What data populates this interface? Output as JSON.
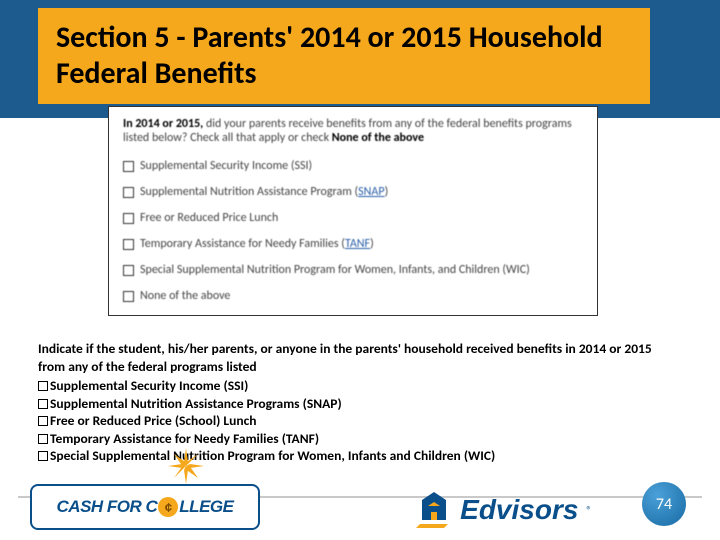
{
  "colors": {
    "header_band": "#1d5b8f",
    "title_bg": "#f5a81c",
    "title_text": "#000000",
    "link": "#2a5ea8",
    "rule": "#c9c9c9",
    "brand_navy": "#0b4f8a",
    "page_bubble_gradient_from": "#4aa0d8",
    "page_bubble_gradient_to": "#186aa3"
  },
  "title": "Section 5 - Parents' 2014 or 2015 Household Federal Benefits",
  "form": {
    "prompt_prefix_bold": "In 2014 or 2015,",
    "prompt_rest": " did your parents receive benefits from any of the federal benefits programs listed below? Check all that apply or check ",
    "prompt_suffix_bold": "None of the above",
    "items": [
      {
        "label": "Supplemental Security Income (SSI)",
        "link": null
      },
      {
        "label": "Supplemental Nutrition Assistance Program (",
        "link": "SNAP",
        "after": ")"
      },
      {
        "label": "Free or Reduced Price Lunch",
        "link": null
      },
      {
        "label": "Temporary Assistance for Needy Families (",
        "link": "TANF",
        "after": ")"
      },
      {
        "label": "Special Supplemental Nutrition Program for Women, Infants, and Children (WIC)",
        "link": null
      },
      {
        "label": "None of the above",
        "link": null
      }
    ]
  },
  "instructions": {
    "lead": "Indicate if the student, his/her parents, or anyone in the parents' household received benefits in 2014 or 2015 from any of the federal programs listed",
    "bullets": [
      "Supplemental Security Income (SSI)",
      "Supplemental Nutrition Assistance Programs (SNAP)",
      "Free or Reduced Price (School) Lunch",
      "Temporary Assistance for Needy Families (TANF)",
      "Special Supplemental Nutrition Program for Women, Infants and Children (WIC)"
    ]
  },
  "footer": {
    "cash_for_college": {
      "left": "CASH FOR C",
      "coin": "¢",
      "right": "LLEGE"
    },
    "edvisors": "Edvisors",
    "registered": "®",
    "page_number": "74"
  }
}
